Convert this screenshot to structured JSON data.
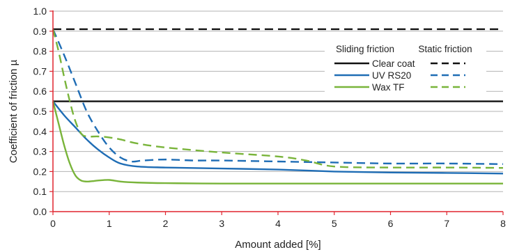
{
  "chart_data": {
    "type": "line",
    "title": "",
    "xlabel": "Amount added [%]",
    "ylabel": "Coefficient of friction µ",
    "xlim": [
      0,
      8
    ],
    "ylim": [
      0,
      1
    ],
    "x_ticks": [
      0,
      1,
      2,
      3,
      4,
      5,
      6,
      7,
      8
    ],
    "y_ticks": [
      "0.0",
      "0.1",
      "0.2",
      "0.3",
      "0.4",
      "0.5",
      "0.6",
      "0.7",
      "0.8",
      "0.9",
      "1.0"
    ],
    "grid": "horizontal",
    "legend": {
      "placement": "right",
      "col_headers": [
        "Sliding friction",
        "Static friction"
      ],
      "rows": [
        "Clear coat",
        "UV RS20",
        "Wax TF"
      ]
    },
    "series": [
      {
        "name": "Clear coat",
        "friction": "sliding",
        "style": "solid",
        "color": "#111111",
        "x": [
          0,
          8
        ],
        "values": [
          0.55,
          0.55
        ]
      },
      {
        "name": "Clear coat",
        "friction": "static",
        "style": "dashed",
        "color": "#111111",
        "x": [
          0,
          8
        ],
        "values": [
          0.91,
          0.91
        ]
      },
      {
        "name": "UV RS20",
        "friction": "sliding",
        "style": "solid",
        "color": "#1f6db5",
        "x": [
          0,
          0.2,
          0.4,
          0.6,
          0.8,
          1.0,
          1.2,
          1.5,
          2,
          3,
          4,
          5,
          6,
          7,
          8
        ],
        "values": [
          0.55,
          0.48,
          0.42,
          0.36,
          0.31,
          0.27,
          0.24,
          0.225,
          0.22,
          0.215,
          0.21,
          0.2,
          0.195,
          0.193,
          0.19
        ]
      },
      {
        "name": "UV RS20",
        "friction": "static",
        "style": "dashed",
        "color": "#1f6db5",
        "x": [
          0,
          0.2,
          0.4,
          0.6,
          0.8,
          1.0,
          1.2,
          1.4,
          1.6,
          2,
          2.5,
          3,
          4,
          5,
          6,
          7,
          8
        ],
        "values": [
          0.91,
          0.78,
          0.64,
          0.5,
          0.4,
          0.32,
          0.27,
          0.25,
          0.255,
          0.26,
          0.255,
          0.255,
          0.25,
          0.245,
          0.24,
          0.24,
          0.237
        ]
      },
      {
        "name": "Wax TF",
        "friction": "sliding",
        "style": "solid",
        "color": "#79b43a",
        "x": [
          0,
          0.1,
          0.2,
          0.3,
          0.4,
          0.5,
          0.6,
          0.7,
          0.8,
          1.0,
          1.2,
          1.5,
          2,
          3,
          4,
          5,
          6,
          7,
          8
        ],
        "values": [
          0.55,
          0.44,
          0.33,
          0.24,
          0.18,
          0.155,
          0.15,
          0.152,
          0.155,
          0.158,
          0.15,
          0.145,
          0.142,
          0.14,
          0.14,
          0.14,
          0.14,
          0.14,
          0.14
        ]
      },
      {
        "name": "Wax TF",
        "friction": "static",
        "style": "dashed",
        "color": "#79b43a",
        "x": [
          0,
          0.1,
          0.2,
          0.3,
          0.4,
          0.5,
          0.6,
          0.8,
          1.0,
          1.2,
          1.5,
          2,
          3,
          4,
          4.5,
          5,
          6,
          7,
          8
        ],
        "values": [
          0.91,
          0.8,
          0.67,
          0.55,
          0.45,
          0.39,
          0.375,
          0.375,
          0.37,
          0.36,
          0.34,
          0.32,
          0.295,
          0.275,
          0.255,
          0.225,
          0.22,
          0.22,
          0.218
        ]
      }
    ],
    "colors": {
      "axis": "#e0242e",
      "grid": "#b3b3b3"
    }
  }
}
